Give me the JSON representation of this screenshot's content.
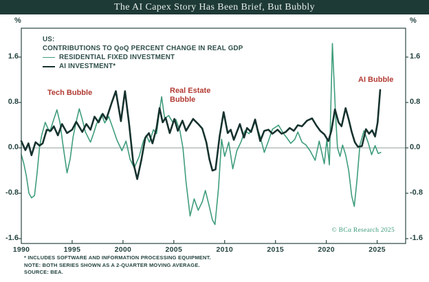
{
  "title_bar": {
    "title": "The AI Capex Story Has Been Brief, But Bubbly"
  },
  "colors": {
    "title_bar_bg": "#1e3a37",
    "title_text": "#e6ede8",
    "axis_frame": "#2a4743",
    "zero_line": "#8f9c98",
    "tick_label": "#23433f",
    "legend_text": "#2e4e4a",
    "annotation_red": "#b23b33",
    "residential_green": "#3f9d7b",
    "ai_dark": "#16322e",
    "copyright_green": "#3f9d7b"
  },
  "footnotes": {
    "lines": [
      "*  INCLUDES SOFTWARE AND INFORMATION PROCESSING EQUIPMENT.",
      "NOTE: BOTH SERIES SHOWN AS A 2-QUARTER MOVING AVERAGE.",
      "SOURCE: BEA."
    ]
  },
  "chart_data": {
    "type": "line",
    "title": "The AI Capex Story Has Been Brief, But Bubbly",
    "unit_left": "%",
    "unit_right": "%",
    "legend": {
      "region": "US:",
      "heading": "CONTRIBUTIONS TO QoQ PERCENT CHANGE IN REAL GDP"
    },
    "axis": {
      "x_min": 1990,
      "x_max": 2027.8,
      "y_min": -1.685,
      "y_max": 2.109,
      "x_ticks": [
        1990,
        1995,
        2000,
        2005,
        2010,
        2015,
        2020,
        2025
      ],
      "x_tick_labels": [
        "1990",
        "1995",
        "2000",
        "2005",
        "2010",
        "2015",
        "2020",
        "2025"
      ],
      "y_ticks": [
        1.6,
        0.8,
        0.0,
        -0.8,
        -1.6
      ],
      "y_tick_labels": [
        "1.6",
        "0.8",
        "0.0",
        "-0.8",
        "-1.6"
      ],
      "grid": "zero-line-only",
      "legend_position": "top-left-inside"
    },
    "annotations": [
      {
        "label": "Tech Bubble",
        "x": 1993.5,
        "y": 1.05
      },
      {
        "label": "Real Estate Bubble",
        "x": 2004.6,
        "y": 1.05
      },
      {
        "label": "AI Bubble",
        "x": 2023.5,
        "y": 1.25
      }
    ],
    "copyright": "© BCα Research 2025",
    "series": [
      {
        "name": "RESIDENTIAL FIXED INVESTMENT",
        "color": "#3f9d7b",
        "width": 1.6,
        "points": [
          [
            1990.0,
            -0.12
          ],
          [
            1990.25,
            -0.28
          ],
          [
            1990.5,
            -0.5
          ],
          [
            1990.75,
            -0.8
          ],
          [
            1991.0,
            -0.88
          ],
          [
            1991.3,
            -0.84
          ],
          [
            1991.55,
            -0.45
          ],
          [
            1991.8,
            0.02
          ],
          [
            1992.0,
            0.22
          ],
          [
            1992.35,
            0.45
          ],
          [
            1992.6,
            0.35
          ],
          [
            1992.8,
            0.28
          ],
          [
            1993.1,
            0.45
          ],
          [
            1993.5,
            0.67
          ],
          [
            1993.8,
            0.45
          ],
          [
            1994.1,
            0.05
          ],
          [
            1994.5,
            -0.44
          ],
          [
            1994.8,
            -0.2
          ],
          [
            1995.1,
            0.2
          ],
          [
            1995.45,
            0.5
          ],
          [
            1995.7,
            0.69
          ],
          [
            1996.0,
            0.5
          ],
          [
            1996.3,
            0.28
          ],
          [
            1996.8,
            0.1
          ],
          [
            1997.1,
            0.25
          ],
          [
            1997.4,
            0.42
          ],
          [
            1997.9,
            0.59
          ],
          [
            1998.2,
            0.44
          ],
          [
            1998.6,
            0.55
          ],
          [
            1999.0,
            0.35
          ],
          [
            1999.4,
            0.14
          ],
          [
            1999.9,
            -0.05
          ],
          [
            2000.3,
            0.12
          ],
          [
            2000.7,
            -0.2
          ],
          [
            2001.1,
            -0.35
          ],
          [
            2001.6,
            -0.15
          ],
          [
            2002.0,
            0.12
          ],
          [
            2002.3,
            0.22
          ],
          [
            2002.6,
            0.1
          ],
          [
            2003.0,
            0.32
          ],
          [
            2003.3,
            0.25
          ],
          [
            2003.55,
            0.6
          ],
          [
            2003.8,
            0.9
          ],
          [
            2004.1,
            0.52
          ],
          [
            2004.5,
            0.57
          ],
          [
            2004.9,
            0.45
          ],
          [
            2005.2,
            0.5
          ],
          [
            2005.6,
            0.3
          ],
          [
            2005.9,
            0.0
          ],
          [
            2006.2,
            -0.6
          ],
          [
            2006.6,
            -1.2
          ],
          [
            2007.0,
            -0.9
          ],
          [
            2007.4,
            -1.1
          ],
          [
            2007.8,
            -0.95
          ],
          [
            2008.1,
            -0.75
          ],
          [
            2008.45,
            -1.0
          ],
          [
            2008.8,
            -1.27
          ],
          [
            2009.05,
            -1.35
          ],
          [
            2009.4,
            -0.7
          ],
          [
            2009.7,
            0.15
          ],
          [
            2010.0,
            -0.15
          ],
          [
            2010.4,
            0.1
          ],
          [
            2010.8,
            -0.37
          ],
          [
            2011.2,
            -0.05
          ],
          [
            2011.6,
            0.1
          ],
          [
            2012.0,
            0.3
          ],
          [
            2012.4,
            0.25
          ],
          [
            2013.0,
            0.45
          ],
          [
            2013.5,
            0.2
          ],
          [
            2013.9,
            -0.08
          ],
          [
            2014.3,
            0.12
          ],
          [
            2014.7,
            0.33
          ],
          [
            2015.3,
            0.4
          ],
          [
            2015.8,
            0.25
          ],
          [
            2016.1,
            0.18
          ],
          [
            2016.5,
            0.08
          ],
          [
            2016.9,
            0.15
          ],
          [
            2017.2,
            0.28
          ],
          [
            2017.6,
            0.1
          ],
          [
            2018.0,
            0.05
          ],
          [
            2018.4,
            -0.05
          ],
          [
            2018.9,
            -0.22
          ],
          [
            2019.3,
            0.12
          ],
          [
            2019.8,
            -0.28
          ],
          [
            2020.05,
            0.14
          ],
          [
            2020.3,
            -0.3
          ],
          [
            2020.6,
            1.84
          ],
          [
            2020.9,
            0.6
          ],
          [
            2021.1,
            0.0
          ],
          [
            2021.35,
            -0.15
          ],
          [
            2021.6,
            0.05
          ],
          [
            2021.9,
            -0.12
          ],
          [
            2022.2,
            -0.4
          ],
          [
            2022.5,
            -0.85
          ],
          [
            2022.75,
            -1.03
          ],
          [
            2023.0,
            -0.6
          ],
          [
            2023.3,
            0.05
          ],
          [
            2023.7,
            0.3
          ],
          [
            2024.1,
            0.1
          ],
          [
            2024.45,
            -0.12
          ],
          [
            2024.8,
            0.04
          ],
          [
            2025.1,
            -0.1
          ],
          [
            2025.35,
            -0.08
          ]
        ]
      },
      {
        "name": "AI INVESTMENT*",
        "color": "#16322e",
        "width": 2.6,
        "points": [
          [
            1990.0,
            0.12
          ],
          [
            1990.4,
            -0.04
          ],
          [
            1990.7,
            0.08
          ],
          [
            1991.0,
            -0.13
          ],
          [
            1991.4,
            0.1
          ],
          [
            1991.8,
            0.04
          ],
          [
            1992.1,
            0.08
          ],
          [
            1992.5,
            0.32
          ],
          [
            1992.9,
            0.3
          ],
          [
            1993.2,
            0.38
          ],
          [
            1993.6,
            0.22
          ],
          [
            1994.0,
            0.42
          ],
          [
            1994.5,
            0.26
          ],
          [
            1995.0,
            0.32
          ],
          [
            1995.4,
            0.46
          ],
          [
            1996.0,
            0.28
          ],
          [
            1996.4,
            0.42
          ],
          [
            1996.8,
            0.32
          ],
          [
            1997.2,
            0.55
          ],
          [
            1997.6,
            0.45
          ],
          [
            1998.0,
            0.6
          ],
          [
            1998.35,
            0.5
          ],
          [
            1998.9,
            0.8
          ],
          [
            1999.3,
            1.0
          ],
          [
            1999.8,
            0.47
          ],
          [
            2000.2,
            1.0
          ],
          [
            2000.6,
            0.42
          ],
          [
            2001.0,
            -0.25
          ],
          [
            2001.4,
            -0.55
          ],
          [
            2001.8,
            -0.22
          ],
          [
            2002.2,
            0.18
          ],
          [
            2002.55,
            0.26
          ],
          [
            2002.9,
            0.08
          ],
          [
            2003.3,
            0.35
          ],
          [
            2003.6,
            0.7
          ],
          [
            2003.9,
            0.45
          ],
          [
            2004.2,
            0.53
          ],
          [
            2004.6,
            0.26
          ],
          [
            2005.05,
            0.51
          ],
          [
            2005.4,
            0.3
          ],
          [
            2005.85,
            0.48
          ],
          [
            2006.2,
            0.3
          ],
          [
            2006.9,
            0.51
          ],
          [
            2007.4,
            0.42
          ],
          [
            2007.8,
            0.34
          ],
          [
            2008.2,
            0.1
          ],
          [
            2008.5,
            -0.2
          ],
          [
            2008.8,
            -0.4
          ],
          [
            2009.1,
            -0.38
          ],
          [
            2009.5,
            0.2
          ],
          [
            2009.9,
            0.63
          ],
          [
            2010.3,
            0.26
          ],
          [
            2010.6,
            0.32
          ],
          [
            2010.9,
            0.14
          ],
          [
            2011.5,
            0.42
          ],
          [
            2011.9,
            0.18
          ],
          [
            2012.2,
            0.35
          ],
          [
            2012.6,
            0.28
          ],
          [
            2013.0,
            0.5
          ],
          [
            2013.5,
            0.12
          ],
          [
            2013.9,
            0.3
          ],
          [
            2014.3,
            0.32
          ],
          [
            2014.7,
            0.25
          ],
          [
            2015.2,
            0.32
          ],
          [
            2015.6,
            0.25
          ],
          [
            2016.0,
            0.28
          ],
          [
            2016.4,
            0.35
          ],
          [
            2016.8,
            0.3
          ],
          [
            2017.2,
            0.4
          ],
          [
            2017.6,
            0.38
          ],
          [
            2018.1,
            0.48
          ],
          [
            2018.6,
            0.52
          ],
          [
            2019.0,
            0.4
          ],
          [
            2019.4,
            0.3
          ],
          [
            2019.8,
            0.24
          ],
          [
            2020.2,
            0.12
          ],
          [
            2020.5,
            0.3
          ],
          [
            2020.85,
            0.68
          ],
          [
            2021.2,
            0.45
          ],
          [
            2021.5,
            0.38
          ],
          [
            2021.9,
            0.7
          ],
          [
            2022.2,
            0.5
          ],
          [
            2022.5,
            0.28
          ],
          [
            2022.8,
            0.1
          ],
          [
            2023.1,
            0.02
          ],
          [
            2023.5,
            0.03
          ],
          [
            2023.9,
            0.33
          ],
          [
            2024.2,
            0.25
          ],
          [
            2024.5,
            0.31
          ],
          [
            2024.8,
            0.2
          ],
          [
            2025.05,
            0.45
          ],
          [
            2025.3,
            1.02
          ]
        ]
      }
    ]
  }
}
